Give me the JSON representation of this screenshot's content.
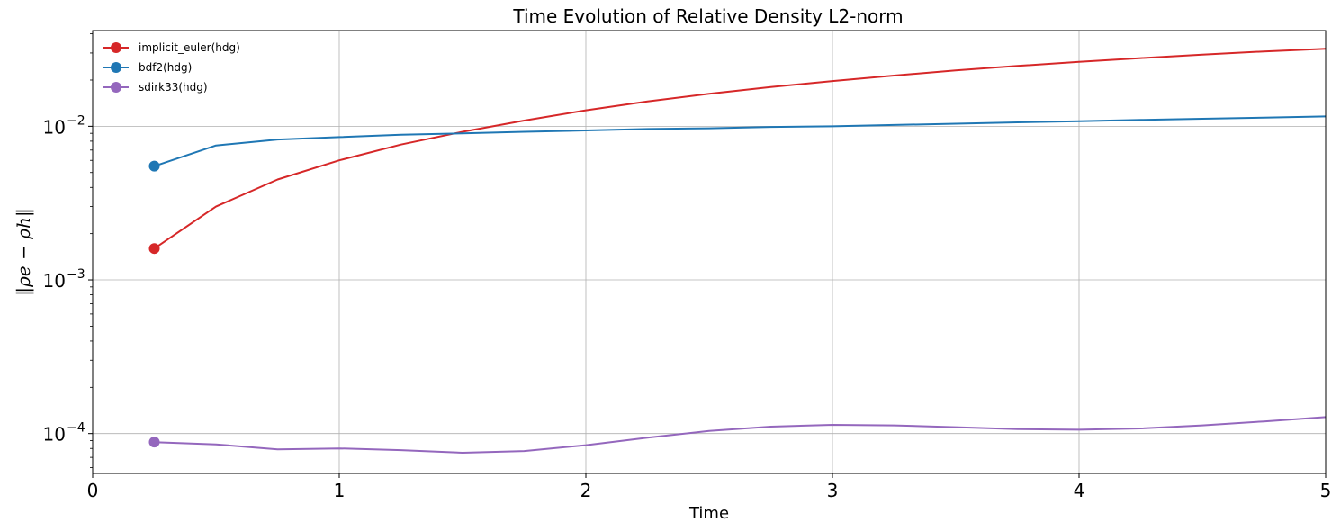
{
  "chart_data": {
    "type": "line",
    "title": "Time Evolution of Relative Density L2-norm",
    "xlabel": "Time",
    "ylabel": "‖ρe − ρh‖",
    "xlim": [
      0,
      5
    ],
    "ylim": [
      5.5e-05,
      0.042
    ],
    "yscale": "log",
    "grid": true,
    "legend_position": "top-left",
    "x_ticks": [
      {
        "value": 0,
        "label": "0"
      },
      {
        "value": 1,
        "label": "1"
      },
      {
        "value": 2,
        "label": "2"
      },
      {
        "value": 3,
        "label": "3"
      },
      {
        "value": 4,
        "label": "4"
      },
      {
        "value": 5,
        "label": "5"
      }
    ],
    "y_ticks": [
      {
        "value": 0.0001,
        "base": "10",
        "exp": "−4"
      },
      {
        "value": 0.001,
        "base": "10",
        "exp": "−3"
      },
      {
        "value": 0.01,
        "base": "10",
        "exp": "−2"
      }
    ],
    "x": [
      0.25,
      0.5,
      0.75,
      1.0,
      1.25,
      1.5,
      1.75,
      2.0,
      2.25,
      2.5,
      2.75,
      3.0,
      3.25,
      3.5,
      3.75,
      4.0,
      4.25,
      4.5,
      4.75,
      5.0
    ],
    "series": [
      {
        "name": "implicit_euler(hdg)",
        "color": "#d62728",
        "values": [
          0.0016,
          0.003,
          0.0045,
          0.006,
          0.0076,
          0.0092,
          0.0109,
          0.0127,
          0.0145,
          0.0163,
          0.018,
          0.0197,
          0.0214,
          0.0231,
          0.0247,
          0.0263,
          0.0278,
          0.0293,
          0.0307,
          0.032
        ]
      },
      {
        "name": "bdf2(hdg)",
        "color": "#1f77b4",
        "values": [
          0.0055,
          0.0075,
          0.0082,
          0.0085,
          0.0088,
          0.009,
          0.0092,
          0.0094,
          0.0096,
          0.0097,
          0.0099,
          0.01,
          0.0102,
          0.0104,
          0.0106,
          0.0108,
          0.011,
          0.0112,
          0.0114,
          0.0116
        ]
      },
      {
        "name": "sdirk33(hdg)",
        "color": "#9467bd",
        "values": [
          8.8e-05,
          8.5e-05,
          7.9e-05,
          8e-05,
          7.8e-05,
          7.5e-05,
          7.7e-05,
          8.4e-05,
          9.4e-05,
          0.000104,
          0.000111,
          0.000114,
          0.000113,
          0.00011,
          0.000107,
          0.000106,
          0.000108,
          0.000113,
          0.00012,
          0.000128
        ]
      }
    ]
  }
}
